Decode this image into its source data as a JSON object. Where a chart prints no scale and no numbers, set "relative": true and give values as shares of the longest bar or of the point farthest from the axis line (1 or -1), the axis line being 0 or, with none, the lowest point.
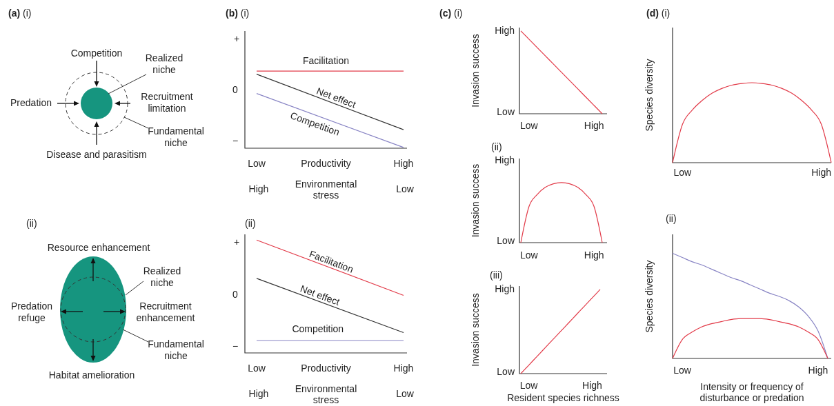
{
  "chart_data": [
    {
      "type": "other",
      "title": "(a) (i)",
      "annotations": [
        "Competition",
        "Realized niche",
        "Predation",
        "Recruitment limitation",
        "Fundamental niche",
        "Disease and parasitism"
      ]
    },
    {
      "type": "other",
      "title": "(ii)",
      "annotations": [
        "Resource enhancement",
        "Realized niche",
        "Predation refuge",
        "Recruitment enhancement",
        "Fundamental niche",
        "Habitat amelioration"
      ]
    },
    {
      "type": "line",
      "title": "(b) (i)",
      "xlabel": "Productivity",
      "x2label": "Environmental stress",
      "relative": true,
      "categories": [
        "Low",
        "High"
      ],
      "annotations": [
        "+",
        "0",
        "−",
        "High",
        "Low"
      ],
      "series": [
        {
          "name": "Facilitation",
          "color": "#e23a48",
          "values": [
            1,
            1
          ]
        },
        {
          "name": "Net effect",
          "color": "#333333",
          "values": [
            0.96,
            0.24
          ]
        },
        {
          "name": "Competition",
          "color": "#8884c4",
          "values": [
            0.71,
            0.01
          ]
        }
      ]
    },
    {
      "type": "line",
      "title": "(ii)",
      "xlabel": "Productivity",
      "x2label": "Environmental stress",
      "relative": true,
      "categories": [
        "Low",
        "High"
      ],
      "annotations": [
        "+",
        "0",
        "−",
        "High",
        "Low"
      ],
      "series": [
        {
          "name": "Facilitation",
          "color": "#e23a48",
          "values": [
            1,
            0.51
          ]
        },
        {
          "name": "Net effect",
          "color": "#333333",
          "values": [
            0.66,
            0.18
          ]
        },
        {
          "name": "Competition",
          "color": "#8884c4",
          "values": [
            0.11,
            0.11
          ]
        }
      ]
    },
    {
      "type": "line",
      "title": "(c) (i)",
      "ylabel": "Invasion success",
      "relative": true,
      "categories": [
        null,
        "Low",
        null,
        null,
        null,
        null,
        null,
        null,
        null,
        "High",
        null
      ],
      "annotations": [
        "High",
        "Low"
      ],
      "series": [
        {
          "color": "#e23a48",
          "values": [
            1,
            0.9,
            0.8,
            0.7,
            0.6,
            0.5,
            0.4,
            0.3,
            0.2,
            0.1,
            0
          ]
        }
      ]
    },
    {
      "type": "line",
      "title": "(ii)",
      "ylabel": "Invasion success",
      "relative": true,
      "categories": [
        null,
        "Low",
        null,
        null,
        null,
        null,
        null,
        null,
        null,
        "High",
        null
      ],
      "annotations": [
        "High",
        "Low"
      ],
      "series": [
        {
          "color": "#e23a48",
          "values": [
            0,
            0.6,
            0.8,
            0.92,
            0.98,
            1,
            0.98,
            0.92,
            0.8,
            0.6,
            0
          ]
        }
      ]
    },
    {
      "type": "line",
      "title": "(iii)",
      "ylabel": "Invasion success",
      "xlabel": "Resident species richness",
      "relative": true,
      "categories": [
        null,
        "Low",
        null,
        null,
        null,
        null,
        null,
        null,
        null,
        "High",
        null
      ],
      "annotations": [
        "High",
        "Low"
      ],
      "series": [
        {
          "color": "#e23a48",
          "values": [
            0,
            0.1,
            0.2,
            0.3,
            0.4,
            0.5,
            0.6,
            0.7,
            0.8,
            0.9,
            1
          ]
        }
      ]
    },
    {
      "type": "line",
      "title": "(d) (i)",
      "ylabel": "Species diversity",
      "relative": true,
      "categories": [
        null,
        "Low",
        null,
        null,
        null,
        null,
        null,
        null,
        null,
        null,
        null,
        null,
        null,
        null,
        null,
        "High",
        null
      ],
      "series": [
        {
          "color": "#e23a48",
          "values": [
            0,
            0.48,
            0.66,
            0.78,
            0.87,
            0.93,
            0.97,
            0.99,
            1,
            0.99,
            0.97,
            0.93,
            0.87,
            0.78,
            0.66,
            0.48,
            0
          ]
        }
      ]
    },
    {
      "type": "line",
      "title": "(ii)",
      "ylabel": "Species diversity",
      "xlabel": "Intensity or frequency of disturbance or predation",
      "relative": true,
      "categories": [
        null,
        "Low",
        null,
        null,
        null,
        null,
        null,
        null,
        null,
        null,
        null,
        null,
        null,
        null,
        null,
        "High",
        null
      ],
      "series": [
        {
          "color": "#8884c4",
          "values": [
            1,
            0.96,
            0.92,
            0.89,
            0.85,
            0.81,
            0.77,
            0.74,
            0.7,
            0.66,
            0.62,
            0.59,
            0.55,
            0.49,
            0.4,
            0.26,
            0
          ]
        },
        {
          "color": "#e23a48",
          "values": [
            0,
            0.18,
            0.25,
            0.3,
            0.33,
            0.35,
            0.37,
            0.38,
            0.38,
            0.38,
            0.37,
            0.35,
            0.33,
            0.3,
            0.25,
            0.18,
            0
          ]
        }
      ]
    }
  ]
}
